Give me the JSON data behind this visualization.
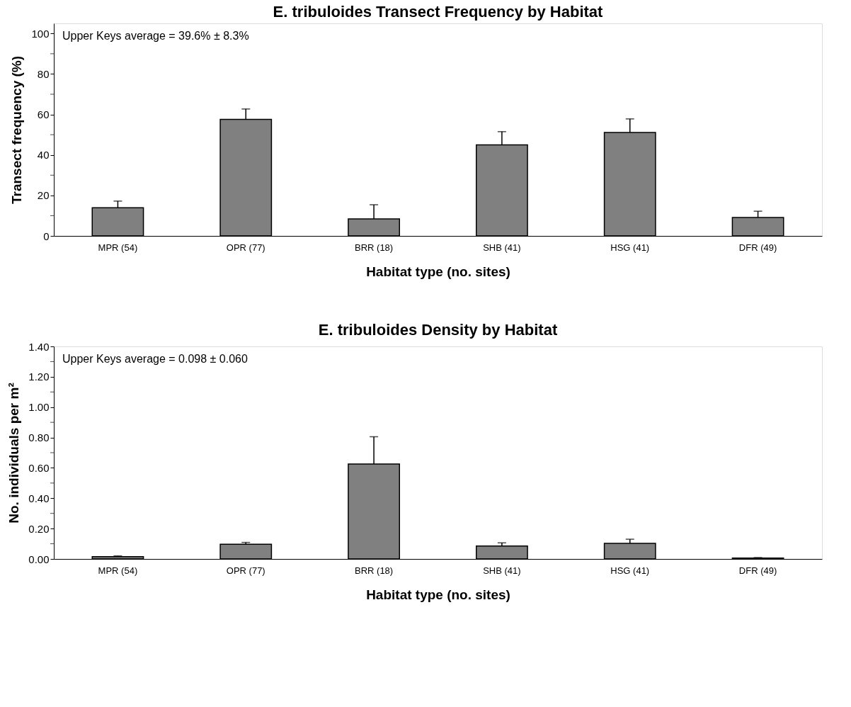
{
  "chart_data": [
    {
      "type": "bar",
      "title": "E. tribuloides Transect Frequency by Habitat",
      "xlabel": "Habitat type (no. sites)",
      "ylabel": "Transect frequency (%)",
      "categories": [
        "MPR (54)",
        "OPR (77)",
        "BRR (18)",
        "SHB (41)",
        "HSG (41)",
        "DFR (49)"
      ],
      "values": [
        13.9,
        57.6,
        8.4,
        45.0,
        51.1,
        9.1
      ],
      "color": "#808080",
      "errors": [
        [
          13.9,
          17.2
        ],
        [
          57.6,
          62.7
        ],
        [
          8.4,
          15.4
        ],
        [
          45.0,
          51.5
        ],
        [
          51.1,
          57.8
        ],
        [
          9.1,
          12.2
        ]
      ],
      "ylim": [
        0,
        105
      ],
      "yticks": [
        0,
        {
          "value": 10,
          "label": null
        },
        20,
        {
          "value": 30,
          "label": null
        },
        40,
        {
          "value": 50,
          "label": null
        },
        60,
        {
          "value": 70,
          "label": null
        },
        80,
        {
          "value": 90,
          "label": null
        },
        100
      ],
      "annotations": [
        "Upper Keys average = 39.6% ± 8.3%"
      ],
      "grid": false
    },
    {
      "type": "bar",
      "title": "E. tribuloides Density by Habitat",
      "xlabel": "Habitat type (no. sites)",
      "ylabel": "No. individuals per m²",
      "categories": [
        "MPR (54)",
        "OPR (77)",
        "BRR (18)",
        "SHB (41)",
        "HSG (41)",
        "DFR (49)"
      ],
      "values": [
        0.015,
        0.097,
        0.625,
        0.085,
        0.103,
        0.006
      ],
      "color": "#808080",
      "errors": [
        [
          0.015,
          0.02
        ],
        [
          0.097,
          0.109
        ],
        [
          0.625,
          0.805
        ],
        [
          0.085,
          0.106
        ],
        [
          0.103,
          0.13
        ],
        [
          0.006,
          0.009
        ]
      ],
      "ylim": [
        0,
        1.4
      ],
      "yticks": [
        {
          "value": 0,
          "label": "0.00"
        },
        {
          "value": 0.1,
          "label": null
        },
        {
          "value": 0.2,
          "label": "0.20"
        },
        {
          "value": 0.3,
          "label": null
        },
        {
          "value": 0.4,
          "label": "0.40"
        },
        {
          "value": 0.5,
          "label": null
        },
        {
          "value": 0.6,
          "label": "0.60"
        },
        {
          "value": 0.7,
          "label": null
        },
        {
          "value": 0.8,
          "label": "0.80"
        },
        {
          "value": 0.9,
          "label": null
        },
        {
          "value": 1.0,
          "label": "1.00"
        },
        {
          "value": 1.1,
          "label": null
        },
        {
          "value": 1.2,
          "label": "1.20"
        },
        {
          "value": 1.3,
          "label": null
        },
        {
          "value": 1.4,
          "label": "1.40"
        }
      ],
      "annotations": [
        "Upper Keys average = 0.098 ± 0.060"
      ],
      "grid": false
    }
  ]
}
